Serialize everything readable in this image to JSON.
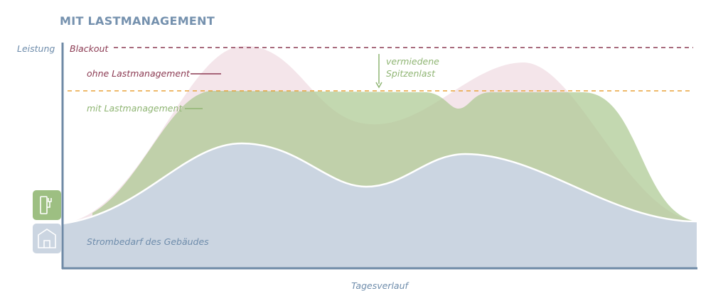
{
  "title": "MIT LASTMANAGEMENT",
  "y_axis_label": "Leistung",
  "x_axis_label": "Tagesverlauf",
  "labels": {
    "blackout": "Blackout",
    "without": "ohne Lastmanagement",
    "avoided_line1": "vermiedene",
    "avoided_line2": "Spitzenlast",
    "with": "mit Lastmanagement",
    "building": "Strombedarf des Gebäudes"
  }
}
